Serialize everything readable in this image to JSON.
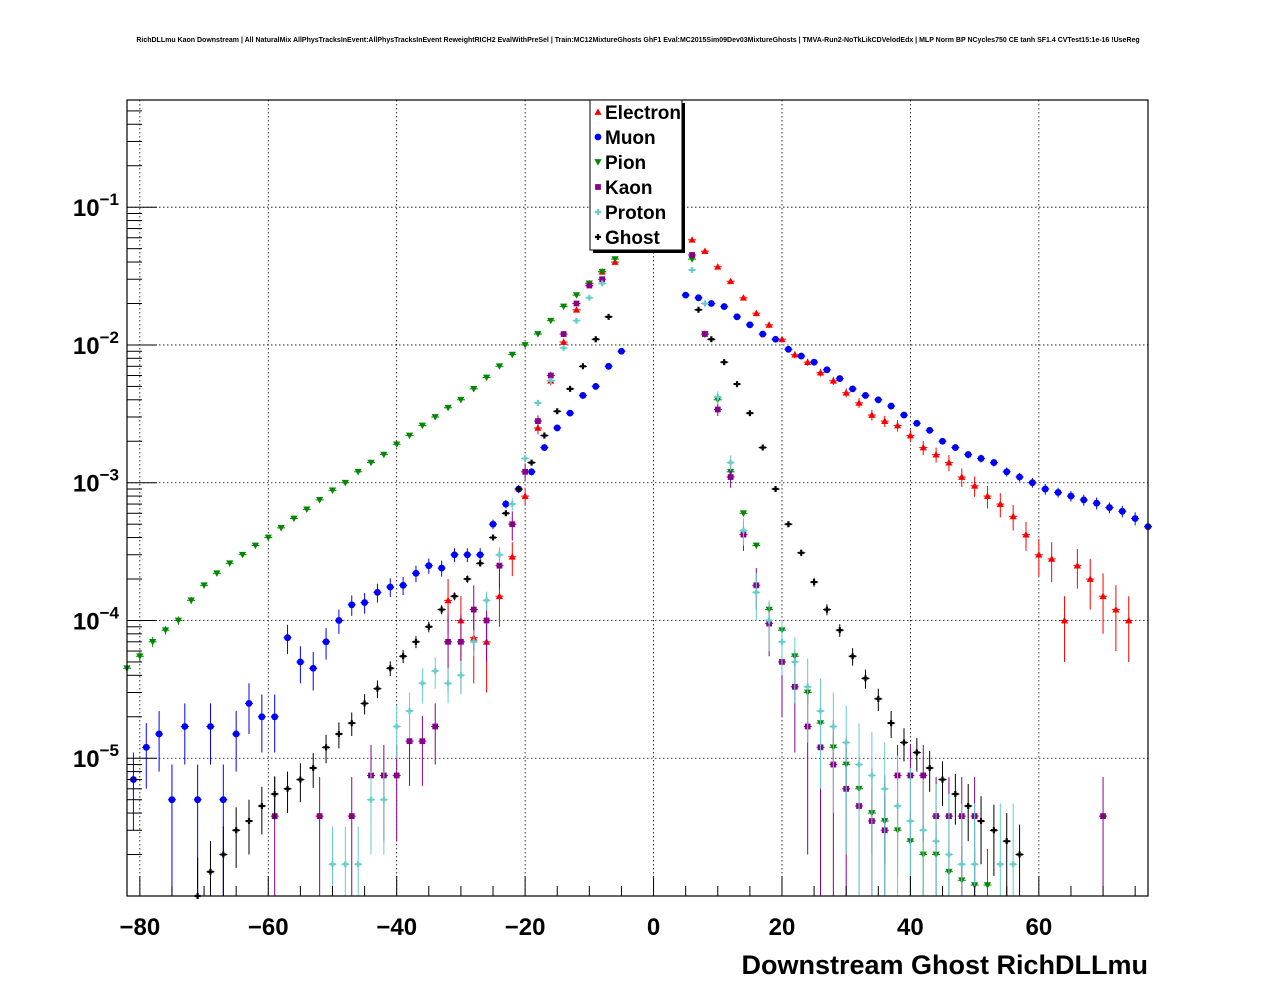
{
  "chart_data": {
    "type": "scatter",
    "title": "RichDLLmu Kaon Downstream | All NaturalMix AllPhysTracksInEvent:AllPhysTracksInEvent ReweightRICH2 EvalWithPreSel | Train:MC12MixtureGhosts GhF1 Eval:MC2015Sim09Dev03MixtureGhosts | TMVA-Run2-NoTkLikCDVelodEdx | MLP Norm BP NCycles750 CE tanh SF1.4 CVTest15:1e-16 !UseReg",
    "xlabel": "Downstream Ghost RichDLLmu",
    "ylabel": "",
    "xlim": [
      -82,
      77
    ],
    "ylim": [
      1e-06,
      0.6
    ],
    "log_y": true,
    "grid": true,
    "legend_position": "top-center",
    "x_ticks": [
      -80,
      -60,
      -40,
      -20,
      0,
      20,
      40,
      60
    ],
    "x_tick_labels": [
      "−80",
      "−60",
      "−40",
      "−20",
      "0",
      "20",
      "40",
      "60"
    ],
    "y_ticks": [
      1e-05,
      0.0001,
      0.001,
      0.01,
      0.1
    ],
    "y_tick_labels": [
      {
        "base": "10",
        "exp": "−5"
      },
      {
        "base": "10",
        "exp": "−4"
      },
      {
        "base": "10",
        "exp": "−3"
      },
      {
        "base": "10",
        "exp": "−2"
      },
      {
        "base": "10",
        "exp": "−1"
      }
    ],
    "series": [
      {
        "name": "Electron",
        "color": "#ff0000",
        "marker": "triangle-up",
        "x": [
          -32,
          -30,
          -28,
          -26,
          -24,
          -22,
          -20,
          -18,
          -16,
          -14,
          -12,
          -10,
          -8,
          -6,
          6,
          8,
          10,
          12,
          14,
          16,
          18,
          20,
          22,
          24,
          26,
          28,
          30,
          32,
          34,
          36,
          38,
          40,
          42,
          44,
          46,
          48,
          50,
          52,
          54,
          56,
          58,
          60,
          62,
          64,
          66,
          68,
          70,
          72,
          74
        ],
        "y": [
          0.00014,
          0.0001,
          7.5e-05,
          7e-05,
          0.00015,
          0.00029,
          0.0008,
          0.0025,
          0.0055,
          0.0105,
          0.018,
          0.028,
          0.034,
          0.04,
          0.058,
          0.048,
          0.037,
          0.029,
          0.022,
          0.017,
          0.014,
          0.011,
          0.0085,
          0.0075,
          0.0063,
          0.0055,
          0.0045,
          0.0038,
          0.0031,
          0.0028,
          0.0026,
          0.0022,
          0.0018,
          0.0016,
          0.0014,
          0.0011,
          0.00095,
          0.0008,
          0.0007,
          0.00057,
          0.00042,
          0.0003,
          0.00028,
          0.0001,
          0.00025,
          0.0002,
          0.00015,
          0.00012,
          0.0001
        ],
        "err": [
          6e-05,
          5e-05,
          4e-05,
          4e-05,
          6e-05,
          8e-05,
          0.00012,
          0.00025,
          0.0004,
          0.0006,
          0.0008,
          0.001,
          0.0012,
          0.0014,
          0.0016,
          0.0014,
          0.0012,
          0.001,
          0.0009,
          0.0008,
          0.0007,
          0.0006,
          0.0005,
          0.00045,
          0.0004,
          0.00037,
          0.00034,
          0.00031,
          0.00028,
          0.00026,
          0.00025,
          0.00023,
          0.00021,
          0.0002,
          0.00019,
          0.00017,
          0.00016,
          0.00015,
          0.00014,
          0.00012,
          0.0001,
          9e-05,
          9e-05,
          5e-05,
          8e-05,
          8e-05,
          7e-05,
          6e-05,
          5e-05
        ]
      },
      {
        "name": "Muon",
        "color": "#0000ff",
        "marker": "circle",
        "x": [
          -81,
          -79,
          -77,
          -75,
          -73,
          -71,
          -69,
          -67,
          -65,
          -63,
          -61,
          -59,
          -57,
          -55,
          -53,
          -51,
          -49,
          -47,
          -45,
          -43,
          -41,
          -39,
          -37,
          -35,
          -33,
          -31,
          -29,
          -27,
          -25,
          -23,
          -21,
          -19,
          -17,
          -15,
          -13,
          -11,
          -9,
          -7,
          -5,
          5,
          7,
          9,
          11,
          13,
          15,
          17,
          19,
          21,
          23,
          25,
          27,
          29,
          31,
          33,
          35,
          37,
          39,
          41,
          43,
          45,
          47,
          49,
          51,
          53,
          55,
          57,
          59,
          61,
          63,
          65,
          67,
          69,
          71,
          73,
          75,
          77
        ],
        "y": [
          7e-06,
          1.2e-05,
          1.5e-05,
          5e-06,
          1.7e-05,
          5e-06,
          1.7e-05,
          5e-06,
          1.5e-05,
          2.5e-05,
          2e-05,
          2e-05,
          7.5e-05,
          5e-05,
          4.5e-05,
          7e-05,
          0.0001,
          0.00013,
          0.000135,
          0.00016,
          0.000175,
          0.00018,
          0.00022,
          0.00025,
          0.00024,
          0.0003,
          0.0003,
          0.0003,
          0.0005,
          0.0007,
          0.0009,
          0.0012,
          0.0018,
          0.0025,
          0.0032,
          0.0043,
          0.005,
          0.007,
          0.009,
          0.023,
          0.022,
          0.02,
          0.019,
          0.016,
          0.014,
          0.012,
          0.011,
          0.0093,
          0.0083,
          0.0075,
          0.0066,
          0.0057,
          0.0048,
          0.0043,
          0.004,
          0.0036,
          0.0031,
          0.0027,
          0.0024,
          0.002,
          0.0018,
          0.0016,
          0.0015,
          0.0014,
          0.0012,
          0.0011,
          0.001,
          0.0009,
          0.00085,
          0.0008,
          0.00075,
          0.00071,
          0.00066,
          0.00062,
          0.00055,
          0.00048
        ],
        "err": [
          4e-06,
          6e-06,
          7e-06,
          4e-06,
          8e-06,
          4e-06,
          8e-06,
          4e-06,
          7e-06,
          1e-05,
          9e-06,
          9e-06,
          1.8e-05,
          1.5e-05,
          1.4e-05,
          1.8e-05,
          2e-05,
          2.2e-05,
          2.3e-05,
          2.5e-05,
          2.7e-05,
          2.7e-05,
          3e-05,
          3.2e-05,
          3.2e-05,
          3.5e-05,
          3.5e-05,
          3.5e-05,
          4e-05,
          5e-05,
          6e-05,
          7e-05,
          9e-05,
          0.00011,
          0.00013,
          0.00015,
          0.00017,
          0.0002,
          0.00025,
          0.0004,
          0.0004,
          0.0004,
          0.00035,
          0.0003,
          0.0003,
          0.00028,
          0.00026,
          0.00024,
          0.00023,
          0.00022,
          0.0002,
          0.00019,
          0.00017,
          0.00016,
          0.00016,
          0.00015,
          0.00014,
          0.00013,
          0.00012,
          0.00011,
          0.0001,
          0.0001,
          0.0001,
          9e-05,
          9e-05,
          8e-05,
          8e-05,
          8e-05,
          7e-05,
          7e-05,
          7e-05,
          7e-05,
          6e-05,
          6e-05,
          6e-05,
          6e-05
        ]
      },
      {
        "name": "Pion",
        "color": "#008800",
        "marker": "triangle-down",
        "x": [
          -82,
          -80,
          -78,
          -76,
          -74,
          -72,
          -70,
          -68,
          -66,
          -64,
          -62,
          -60,
          -58,
          -56,
          -54,
          -52,
          -50,
          -48,
          -46,
          -44,
          -42,
          -40,
          -38,
          -36,
          -34,
          -32,
          -30,
          -28,
          -26,
          -24,
          -22,
          -20,
          -18,
          -16,
          -14,
          -12,
          -10,
          -8,
          -6,
          6,
          8,
          10,
          12,
          14,
          16,
          18,
          20,
          22,
          24,
          26,
          28,
          30,
          32,
          34,
          36,
          38,
          40,
          42,
          44,
          46,
          48,
          50,
          52
        ],
        "y": [
          4.5e-05,
          5.5e-05,
          7e-05,
          8.5e-05,
          0.0001,
          0.00014,
          0.00018,
          0.00022,
          0.00026,
          0.0003,
          0.00035,
          0.0004,
          0.00047,
          0.00055,
          0.00064,
          0.00075,
          0.00088,
          0.001,
          0.0012,
          0.0014,
          0.0016,
          0.0019,
          0.0022,
          0.0026,
          0.003,
          0.0035,
          0.004,
          0.0048,
          0.0058,
          0.007,
          0.0085,
          0.01,
          0.012,
          0.015,
          0.019,
          0.023,
          0.028,
          0.034,
          0.042,
          0.042,
          0.012,
          0.004,
          0.0012,
          0.0006,
          0.00035,
          0.00012,
          8.5e-05,
          5.5e-05,
          3e-05,
          1.8e-05,
          1.2e-05,
          9e-06,
          6e-06,
          4e-06,
          3.5e-06,
          3e-06,
          2.5e-06,
          2e-06,
          2e-06,
          1.5e-06,
          1.3e-06,
          1.2e-06,
          1.2e-06
        ],
        "err": [
          5e-06,
          5e-06,
          6e-06,
          6e-06,
          7e-06,
          8e-06,
          9e-06,
          1e-05,
          1.1e-05,
          1.2e-05,
          1.3e-05,
          1.4e-05,
          1.5e-05,
          1.6e-05,
          1.7e-05,
          1.9e-05,
          2e-05,
          2.2e-05,
          2.4e-05,
          2.6e-05,
          2.8e-05,
          3e-05,
          3.3e-05,
          3.6e-05,
          4e-05,
          4.3e-05,
          4.7e-05,
          5e-05,
          5.5e-05,
          6e-05,
          6.7e-05,
          7.3e-05,
          8e-05,
          9e-05,
          0.0001,
          0.00011,
          0.00012,
          0.00014,
          0.00015,
          0.00015,
          8e-05,
          5e-05,
          3e-05,
          2e-05,
          1.5e-05,
          1e-05,
          8e-06,
          6e-06,
          5e-06,
          4e-06,
          3e-06,
          3e-06,
          2e-06,
          2e-06,
          1.8e-06,
          1.6e-06,
          1.5e-06,
          1.3e-06,
          1.3e-06,
          1.1e-06,
          1e-06,
          1e-06,
          1e-06
        ]
      },
      {
        "name": "Kaon",
        "color": "#880088",
        "marker": "square",
        "x": [
          -59,
          -52,
          -47,
          -44,
          -42,
          -40,
          -38,
          -36,
          -34,
          -32,
          -30,
          -28,
          -26,
          -24,
          -22,
          -20,
          -18,
          -16,
          -14,
          -12,
          -10,
          -8,
          6,
          8,
          10,
          12,
          14,
          16,
          18,
          20,
          22,
          24,
          26,
          28,
          30,
          32,
          34,
          36,
          38,
          40,
          42,
          44,
          46,
          48,
          50,
          70
        ],
        "y": [
          3.8e-06,
          3.8e-06,
          3.8e-06,
          7.5e-06,
          7.5e-06,
          7.5e-06,
          1.33e-05,
          1.33e-05,
          1.7e-05,
          7e-05,
          7e-05,
          0.00012,
          0.0001,
          0.00025,
          0.0005,
          0.0012,
          0.0028,
          0.006,
          0.012,
          0.02,
          0.027,
          0.03,
          0.045,
          0.012,
          0.0034,
          0.0011,
          0.00042,
          0.00018,
          9.5e-05,
          5e-05,
          3.3e-05,
          1.7e-05,
          1.2e-05,
          9e-06,
          6e-06,
          4.5e-06,
          3.5e-06,
          3e-06,
          7.5e-06,
          7.5e-06,
          7.5e-06,
          3.8e-06,
          3.8e-06,
          3.8e-06,
          3.8e-06,
          3.8e-06
        ],
        "err": [
          3.5e-06,
          3.5e-06,
          3.5e-06,
          5e-06,
          5e-06,
          5e-06,
          7e-06,
          7e-06,
          8e-06,
          4e-05,
          4e-05,
          6e-05,
          5e-05,
          8e-05,
          0.00012,
          0.00018,
          0.00028,
          0.0004,
          0.0006,
          0.0008,
          0.001,
          0.0011,
          0.0014,
          0.0007,
          0.00035,
          0.00018,
          0.0001,
          6e-05,
          4e-05,
          3e-05,
          2.2e-05,
          1.5e-05,
          1.2e-05,
          1e-05,
          8e-06,
          6e-06,
          5e-06,
          4.5e-06,
          5e-06,
          5e-06,
          5e-06,
          3.5e-06,
          3.5e-06,
          3.5e-06,
          3.5e-06,
          3.5e-06
        ]
      },
      {
        "name": "Proton",
        "color": "#66cccc",
        "marker": "cross",
        "x": [
          -50,
          -48,
          -46,
          -44,
          -42,
          -40,
          -38,
          -36,
          -34,
          -32,
          -30,
          -28,
          -26,
          -24,
          -22,
          -20,
          -18,
          -16,
          -14,
          -12,
          -10,
          -8,
          6,
          8,
          10,
          12,
          14,
          16,
          18,
          20,
          22,
          24,
          26,
          28,
          30,
          32,
          34,
          36,
          38,
          40,
          42,
          44,
          46,
          48,
          50,
          54,
          56
        ],
        "y": [
          1.7e-06,
          1.7e-06,
          1.7e-06,
          5e-06,
          5e-06,
          1.7e-05,
          2.2e-05,
          3.5e-05,
          4.3e-05,
          3.5e-05,
          4e-05,
          7e-05,
          0.00014,
          0.0003,
          0.0007,
          0.0015,
          0.0038,
          0.0055,
          0.0095,
          0.015,
          0.022,
          0.028,
          0.035,
          0.02,
          0.0042,
          0.0014,
          0.00045,
          0.00016,
          0.0001,
          7e-05,
          5e-05,
          3.3e-05,
          2.2e-05,
          1.7e-05,
          1.3e-05,
          9e-06,
          7.5e-06,
          6e-06,
          4.5e-06,
          3.5e-06,
          3e-06,
          2.5e-06,
          2e-06,
          1.7e-06,
          1.7e-06,
          1.7e-06,
          1.7e-06
        ],
        "err": [
          1.5e-06,
          1.5e-06,
          1.5e-06,
          3e-06,
          3e-06,
          7e-06,
          8e-06,
          1e-05,
          1.1e-05,
          1e-05,
          1.1e-05,
          1.5e-05,
          2.2e-05,
          4e-05,
          7e-05,
          0.0001,
          0.00018,
          0.00025,
          0.0004,
          0.0006,
          0.0008,
          0.001,
          0.0012,
          0.0009,
          0.0004,
          0.00018,
          0.0001,
          6e-05,
          4e-05,
          3e-05,
          2.5e-05,
          2e-05,
          1.6e-05,
          1.3e-05,
          1.1e-05,
          9e-06,
          8e-06,
          7e-06,
          6e-06,
          5e-06,
          4e-06,
          4e-06,
          3.5e-06,
          3e-06,
          3e-06,
          3e-06,
          3e-06
        ]
      },
      {
        "name": "Ghost",
        "color": "#000000",
        "marker": "cross",
        "x": [
          -71,
          -69,
          -67,
          -65,
          -63,
          -61,
          -59,
          -57,
          -55,
          -53,
          -51,
          -49,
          -47,
          -45,
          -43,
          -41,
          -39,
          -37,
          -35,
          -33,
          -31,
          -29,
          -27,
          -25,
          -23,
          -21,
          -19,
          -17,
          -15,
          -13,
          -11,
          -9,
          -7,
          7,
          9,
          11,
          13,
          15,
          17,
          19,
          21,
          23,
          25,
          27,
          29,
          31,
          33,
          35,
          37,
          39,
          41,
          43,
          45,
          47,
          49,
          51,
          53,
          55,
          57
        ],
        "y": [
          1e-06,
          1.5e-06,
          2e-06,
          3e-06,
          3.5e-06,
          4.5e-06,
          5.5e-06,
          6e-06,
          7e-06,
          8.5e-06,
          1.2e-05,
          1.5e-05,
          1.8e-05,
          2.5e-05,
          3.2e-05,
          4.5e-05,
          5.5e-05,
          7e-05,
          9e-05,
          0.00012,
          0.00015,
          0.0002,
          0.00026,
          0.0004,
          0.0006,
          0.0009,
          0.0014,
          0.0022,
          0.0033,
          0.0048,
          0.007,
          0.011,
          0.016,
          0.018,
          0.011,
          0.0075,
          0.0052,
          0.0032,
          0.0018,
          0.0009,
          0.0005,
          0.00031,
          0.00019,
          0.00012,
          8.5e-05,
          5.5e-05,
          3.8e-05,
          2.7e-05,
          1.8e-05,
          1.3e-05,
          1.1e-05,
          8.5e-06,
          7e-06,
          5.5e-06,
          4.5e-06,
          3.5e-06,
          3e-06,
          2.5e-06,
          2e-06
        ],
        "err": [
          9e-07,
          1e-06,
          1.2e-06,
          1.4e-06,
          1.5e-06,
          1.7e-06,
          1.9e-06,
          2e-06,
          2.2e-06,
          2.4e-06,
          2.8e-06,
          3.2e-06,
          3.5e-06,
          4.2e-06,
          4.7e-06,
          5.5e-06,
          6e-06,
          7e-06,
          8e-06,
          9e-06,
          1e-05,
          1.2e-05,
          1.4e-05,
          1.7e-05,
          2.1e-05,
          2.6e-05,
          3.2e-05,
          4e-05,
          5e-05,
          6e-05,
          7e-05,
          9e-05,
          0.00011,
          0.00012,
          9e-05,
          8e-05,
          6e-05,
          5e-05,
          4e-05,
          3e-05,
          2.2e-05,
          1.7e-05,
          1.4e-05,
          1.1e-05,
          9e-06,
          8e-06,
          6e-06,
          5e-06,
          4e-06,
          3.5e-06,
          3e-06,
          2.8e-06,
          2.5e-06,
          2.2e-06,
          2e-06,
          1.8e-06,
          1.6e-06,
          1.5e-06,
          1.3e-06
        ]
      }
    ]
  }
}
